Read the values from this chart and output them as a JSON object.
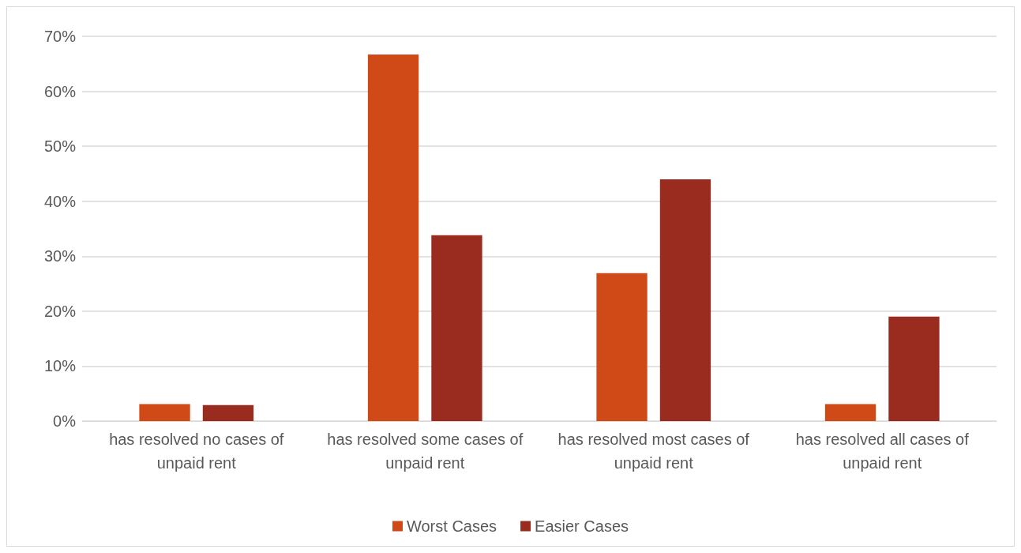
{
  "chart_data": {
    "type": "bar",
    "categories": [
      "has resolved no cases of unpaid rent",
      "has resolved some cases of unpaid rent",
      "has resolved most cases of unpaid rent",
      "has resolved all cases of unpaid rent"
    ],
    "series": [
      {
        "name": "Worst Cases",
        "color": "#d04a17",
        "values": [
          3.1,
          66.7,
          26.9,
          3.1
        ]
      },
      {
        "name": "Easier Cases",
        "color": "#9a2b1f",
        "values": [
          2.9,
          33.8,
          44.0,
          19.0
        ]
      }
    ],
    "ylim": [
      0,
      70
    ],
    "yticks": [
      {
        "value": 0,
        "label": "0%"
      },
      {
        "value": 10,
        "label": "10%"
      },
      {
        "value": 20,
        "label": "20%"
      },
      {
        "value": 30,
        "label": "30%"
      },
      {
        "value": 40,
        "label": "40%"
      },
      {
        "value": 50,
        "label": "50%"
      },
      {
        "value": 60,
        "label": "60%"
      },
      {
        "value": 70,
        "label": "70%"
      }
    ],
    "grid": "y",
    "legend": "bottom"
  }
}
